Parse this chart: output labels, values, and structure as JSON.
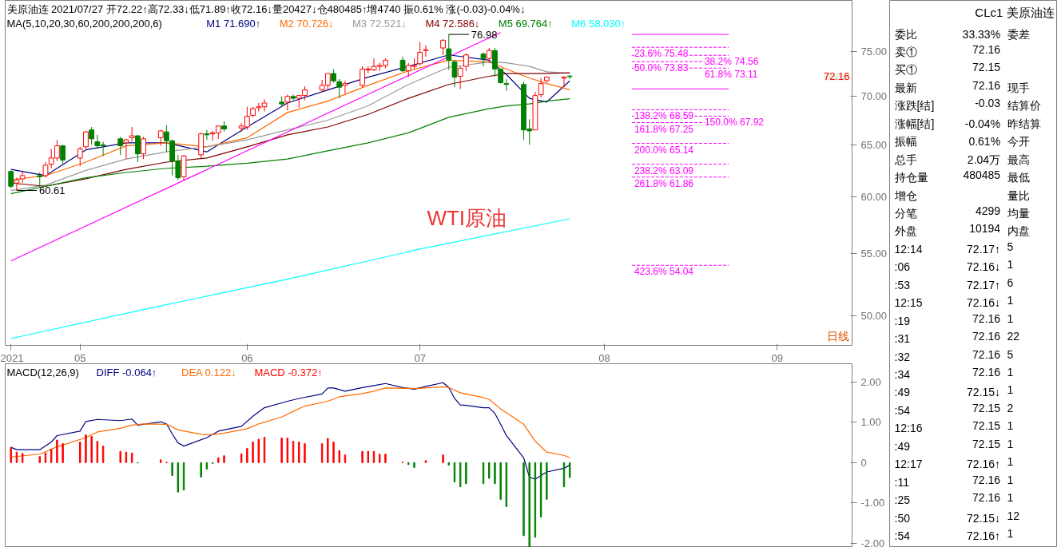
{
  "chart_data": [
    {
      "type": "candlestick",
      "title": "美原油连 2021/07/27 开72.22↑高72.33↓低71.89↑收72.16↓量20427↓仓480485↑增4740 振0.61% 涨(-0.03)-0.04%↓",
      "x": [
        "2021-04-21",
        "2021-04-22",
        "2021-04-23",
        "2021-04-26",
        "2021-04-27",
        "2021-04-28",
        "2021-04-29",
        "2021-04-30",
        "2021-05-03",
        "2021-05-04",
        "2021-05-05",
        "2021-05-06",
        "2021-05-07",
        "2021-05-10",
        "2021-05-11",
        "2021-05-12",
        "2021-05-13",
        "2021-05-14",
        "2021-05-17",
        "2021-05-18",
        "2021-05-19",
        "2021-05-20",
        "2021-05-21",
        "2021-05-24",
        "2021-05-25",
        "2021-05-26",
        "2021-05-27",
        "2021-05-28",
        "2021-05-31",
        "2021-06-01",
        "2021-06-02",
        "2021-06-03",
        "2021-06-04",
        "2021-06-07",
        "2021-06-08",
        "2021-06-09",
        "2021-06-10",
        "2021-06-11",
        "2021-06-14",
        "2021-06-15",
        "2021-06-16",
        "2021-06-17",
        "2021-06-18",
        "2021-06-21",
        "2021-06-22",
        "2021-06-23",
        "2021-06-24",
        "2021-06-25",
        "2021-06-28",
        "2021-06-29",
        "2021-06-30",
        "2021-07-01",
        "2021-07-02",
        "2021-07-05",
        "2021-07-06",
        "2021-07-07",
        "2021-07-08",
        "2021-07-09",
        "2021-07-12",
        "2021-07-13",
        "2021-07-14",
        "2021-07-15",
        "2021-07-16",
        "2021-07-19",
        "2021-07-20",
        "2021-07-21",
        "2021-07-22",
        "2021-07-23",
        "2021-07-26",
        "2021-07-27"
      ],
      "ohlc": [
        [
          62.4,
          62.5,
          60.8,
          61.0
        ],
        [
          61.3,
          61.8,
          60.61,
          61.6
        ],
        [
          61.7,
          62.4,
          61.3,
          62.0
        ],
        [
          62.0,
          62.3,
          60.9,
          61.9
        ],
        [
          62.0,
          63.3,
          61.8,
          63.0
        ],
        [
          63.1,
          64.6,
          62.7,
          63.7
        ],
        [
          63.7,
          65.5,
          63.4,
          64.9
        ],
        [
          64.9,
          65.0,
          63.1,
          63.5
        ],
        [
          63.7,
          64.8,
          62.9,
          64.6
        ],
        [
          64.8,
          66.4,
          64.6,
          66.3
        ],
        [
          66.5,
          66.8,
          65.0,
          65.6
        ],
        [
          65.3,
          66.0,
          64.6,
          64.9
        ],
        [
          65.0,
          65.3,
          63.9,
          64.9
        ],
        [
          65.6,
          65.8,
          64.0,
          64.9
        ],
        [
          65.2,
          65.6,
          63.6,
          65.5
        ],
        [
          65.7,
          66.8,
          65.3,
          65.9
        ],
        [
          65.9,
          66.0,
          63.3,
          64.1
        ],
        [
          64.1,
          65.8,
          63.6,
          65.6
        ],
        [
          65.7,
          66.5,
          64.9,
          66.4
        ],
        [
          66.3,
          67.0,
          64.3,
          65.4
        ],
        [
          65.4,
          65.5,
          62.0,
          63.4
        ],
        [
          63.4,
          64.0,
          61.6,
          61.8
        ],
        [
          61.9,
          64.0,
          61.6,
          63.9
        ],
        [
          64.0,
          66.2,
          63.7,
          66.1
        ],
        [
          66.1,
          66.5,
          65.5,
          66.0
        ],
        [
          66.1,
          66.4,
          65.4,
          66.2
        ],
        [
          66.2,
          66.9,
          65.6,
          66.9
        ],
        [
          66.9,
          67.4,
          66.3,
          66.6
        ],
        [
          66.7,
          67.2,
          66.3,
          66.9
        ],
        [
          66.8,
          68.9,
          66.5,
          67.9
        ],
        [
          68.0,
          68.9,
          67.8,
          68.7
        ],
        [
          68.8,
          69.3,
          68.4,
          68.9
        ],
        [
          68.9,
          69.7,
          68.4,
          69.3
        ],
        [
          69.4,
          70.0,
          68.9,
          69.2
        ],
        [
          69.4,
          70.2,
          68.5,
          70.0
        ],
        [
          70.0,
          70.2,
          69.6,
          69.8
        ],
        [
          69.8,
          70.1,
          68.8,
          70.1
        ],
        [
          70.1,
          71.1,
          69.6,
          70.7
        ],
        [
          70.7,
          71.8,
          70.5,
          71.2
        ],
        [
          71.2,
          72.5,
          70.7,
          72.5
        ],
        [
          72.5,
          73.0,
          71.5,
          71.7
        ],
        [
          71.6,
          71.9,
          69.8,
          71.0
        ],
        [
          71.2,
          71.7,
          70.3,
          71.4
        ],
        [
          71.2,
          73.3,
          71.0,
          73.0
        ],
        [
          72.9,
          73.3,
          72.5,
          73.0
        ],
        [
          72.9,
          74.2,
          72.8,
          73.3
        ],
        [
          73.3,
          73.7,
          72.8,
          73.4
        ],
        [
          73.4,
          74.2,
          73.1,
          74.0
        ],
        [
          74.0,
          74.4,
          72.7,
          72.8
        ],
        [
          72.8,
          73.7,
          72.1,
          73.4
        ],
        [
          73.3,
          74.2,
          73.0,
          73.4
        ],
        [
          73.6,
          76.1,
          73.4,
          74.9
        ],
        [
          75.1,
          75.7,
          74.4,
          75.2
        ],
        [
          75.4,
          76.4,
          74.6,
          76.3
        ],
        [
          75.3,
          76.98,
          72.9,
          74.0
        ],
        [
          73.8,
          74.0,
          71.0,
          72.1
        ],
        [
          72.2,
          73.3,
          70.8,
          73.1
        ],
        [
          73.3,
          74.8,
          72.8,
          74.6
        ],
        [
          74.7,
          74.9,
          73.3,
          74.2
        ],
        [
          74.2,
          75.4,
          73.7,
          75.1
        ],
        [
          75.1,
          75.4,
          72.2,
          73.0
        ],
        [
          73.0,
          73.0,
          71.4,
          71.5
        ],
        [
          71.4,
          71.9,
          70.6,
          71.3
        ],
        [
          71.3,
          71.6,
          65.5,
          66.5
        ],
        [
          66.6,
          67.6,
          65.0,
          66.4
        ],
        [
          66.5,
          70.5,
          66.5,
          70.1
        ],
        [
          70.2,
          72.0,
          69.9,
          71.4
        ],
        [
          71.7,
          72.2,
          71.5,
          72.1
        ],
        [
          72.0,
          72.2,
          71.0,
          72.1
        ],
        [
          72.22,
          72.33,
          71.89,
          72.16
        ]
      ],
      "colors": [
        "#008000",
        "#ff0000",
        "#ff0000",
        "#008000",
        "#ff0000",
        "#ff0000",
        "#ff0000",
        "#008000",
        "#ff0000",
        "#ff0000",
        "#008000",
        "#008000",
        "#008000",
        "#008000",
        "#ff0000",
        "#ff0000",
        "#008000",
        "#ff0000",
        "#ff0000",
        "#008000",
        "#008000",
        "#008000",
        "#ff0000",
        "#ff0000",
        "#008000",
        "#ff0000",
        "#ff0000",
        "#008000",
        "#ff0000",
        "#ff0000",
        "#ff0000",
        "#ff0000",
        "#ff0000",
        "#008000",
        "#ff0000",
        "#008000",
        "#ff0000",
        "#ff0000",
        "#ff0000",
        "#ff0000",
        "#008000",
        "#008000",
        "#ff0000",
        "#ff0000",
        "#ff0000",
        "#ff0000",
        "#ff0000",
        "#ff0000",
        "#008000",
        "#ff0000",
        "#ff0000",
        "#ff0000",
        "#ff0000",
        "#ff0000",
        "#008000",
        "#008000",
        "#ff0000",
        "#ff0000",
        "#008000",
        "#ff0000",
        "#008000",
        "#008000",
        "#008000",
        "#008000",
        "#008000",
        "#ff0000",
        "#ff0000",
        "#ff0000",
        "#ff0000",
        "#008000"
      ],
      "series": [
        {
          "name": "M1 71.690↑",
          "type": "line",
          "color": "#000080",
          "x": [
            "2021-04-21",
            "2021-04-27",
            "2021-05-04",
            "2021-05-11",
            "2021-05-18",
            "2021-05-25",
            "2021-06-01",
            "2021-06-08",
            "2021-06-15",
            "2021-06-22",
            "2021-06-29",
            "2021-07-06",
            "2021-07-13",
            "2021-07-16",
            "2021-07-20",
            "2021-07-23",
            "2021-07-27"
          ],
          "values": [
            62.6,
            62.0,
            64.5,
            65.2,
            65.2,
            64.3,
            66.8,
            69.3,
            70.7,
            72.1,
            73.3,
            74.6,
            74.0,
            72.4,
            69.8,
            69.4,
            71.69
          ]
        },
        {
          "name": "M2 70.726↓",
          "type": "line",
          "color": "#ff6a00",
          "x": [
            "2021-04-21",
            "2021-04-27",
            "2021-05-04",
            "2021-05-11",
            "2021-05-18",
            "2021-05-25",
            "2021-06-01",
            "2021-06-08",
            "2021-06-15",
            "2021-06-22",
            "2021-06-29",
            "2021-07-06",
            "2021-07-13",
            "2021-07-16",
            "2021-07-20",
            "2021-07-23",
            "2021-07-27"
          ],
          "values": [
            61.6,
            62.0,
            63.3,
            64.9,
            65.2,
            64.8,
            65.7,
            68.3,
            69.5,
            71.2,
            72.8,
            74.0,
            73.8,
            73.0,
            72.0,
            71.4,
            70.73
          ]
        },
        {
          "name": "M3 72.521↓",
          "type": "line",
          "color": "#999999",
          "x": [
            "2021-04-21",
            "2021-04-27",
            "2021-05-04",
            "2021-05-11",
            "2021-05-18",
            "2021-05-25",
            "2021-06-01",
            "2021-06-08",
            "2021-06-15",
            "2021-06-22",
            "2021-06-29",
            "2021-07-06",
            "2021-07-13",
            "2021-07-16",
            "2021-07-20",
            "2021-07-23",
            "2021-07-27"
          ],
          "values": [
            60.6,
            61.1,
            62.5,
            63.6,
            64.3,
            64.8,
            65.5,
            66.5,
            67.5,
            69.0,
            71.3,
            73.2,
            73.8,
            73.7,
            73.3,
            72.7,
            72.52
          ]
        },
        {
          "name": "M4 72.586↓",
          "type": "line",
          "color": "#800000",
          "x": [
            "2021-04-21",
            "2021-04-27",
            "2021-05-04",
            "2021-05-11",
            "2021-05-18",
            "2021-05-25",
            "2021-06-01",
            "2021-06-08",
            "2021-06-15",
            "2021-06-22",
            "2021-06-29",
            "2021-07-06",
            "2021-07-13",
            "2021-07-16",
            "2021-07-20",
            "2021-07-23",
            "2021-07-27"
          ],
          "values": [
            61.3,
            61.0,
            61.7,
            62.6,
            63.3,
            63.7,
            64.8,
            66.0,
            66.8,
            68.1,
            69.8,
            71.3,
            72.2,
            72.5,
            72.5,
            72.5,
            72.59
          ]
        },
        {
          "name": "M5 69.764↑",
          "type": "line",
          "color": "#008000",
          "x": [
            "2021-04-21",
            "2021-04-27",
            "2021-05-04",
            "2021-05-11",
            "2021-05-18",
            "2021-05-25",
            "2021-06-01",
            "2021-06-08",
            "2021-06-15",
            "2021-06-22",
            "2021-06-29",
            "2021-07-06",
            "2021-07-13",
            "2021-07-16",
            "2021-07-20",
            "2021-07-23",
            "2021-07-27"
          ],
          "values": [
            60.3,
            61.0,
            61.8,
            62.3,
            62.7,
            62.9,
            63.2,
            63.6,
            64.4,
            65.2,
            66.2,
            67.8,
            68.7,
            69.0,
            69.2,
            69.5,
            69.76
          ]
        },
        {
          "name": "M6 58.030↑",
          "type": "line",
          "color": "#00ffff",
          "x": [
            "2021-04-21",
            "2021-05-14",
            "2021-06-08",
            "2021-07-01",
            "2021-07-27"
          ],
          "values": [
            48.3,
            50.5,
            52.9,
            55.4,
            58.03
          ]
        },
        {
          "type": "line",
          "color": "#ff00ff",
          "x": [
            "2021-04-21",
            "2021-07-15"
          ],
          "values": [
            54.4,
            77.2
          ]
        }
      ],
      "legend": "top",
      "legend_title": "MA(5,10,20,30,60,200,200,200,6)",
      "xlim": [
        "2021-04-20",
        "2021-09-14"
      ],
      "ylim": [
        47.8,
        81.1
      ],
      "log": true,
      "xticks": [
        {
          "value": "2021-04-21",
          "label": "2021"
        },
        {
          "value": "2021-05-03",
          "label": "05"
        },
        {
          "value": "2021-06-01",
          "label": "06"
        },
        {
          "value": "2021-07-01",
          "label": "07"
        },
        {
          "value": "2021-08-02",
          "label": "08"
        },
        {
          "value": "2021-09-01",
          "label": "09"
        }
      ],
      "yticks": [
        {
          "value": 50,
          "label": "50.00"
        },
        {
          "value": 55,
          "label": "55.00"
        },
        {
          "value": 60,
          "label": "60.00"
        },
        {
          "value": 65,
          "label": "65.00"
        },
        {
          "value": 70,
          "label": "70.00"
        },
        {
          "value": 75,
          "label": "75.00"
        }
      ],
      "ref_lines": [
        {
          "axis": "y",
          "value": 76.98,
          "label": null,
          "color": "#ff00ff",
          "line_style": "solid"
        },
        {
          "axis": "y",
          "value": 75.48,
          "label": "23.6% 75.48",
          "color": "#ff00ff",
          "line_style": "dashed"
        },
        {
          "axis": "y",
          "value": 74.56,
          "label": "38.2% 74.56",
          "color": "#ff00ff",
          "line_style": "dashed"
        },
        {
          "axis": "y",
          "value": 73.83,
          "label": "50.0% 73.83",
          "color": "#ff00ff",
          "line_style": "dashed"
        },
        {
          "axis": "y",
          "value": 73.11,
          "label": "61.8% 73.11",
          "color": "#ff00ff",
          "line_style": "dashed"
        },
        {
          "axis": "y",
          "value": 70.82,
          "label": null,
          "color": "#ff00ff",
          "line_style": "solid"
        },
        {
          "axis": "y",
          "value": 68.59,
          "label": "138.2% 68.59",
          "color": "#ff00ff",
          "line_style": "dashed"
        },
        {
          "axis": "y",
          "value": 67.92,
          "label": "150.0% 67.92",
          "color": "#ff00ff",
          "line_style": "dashed"
        },
        {
          "axis": "y",
          "value": 67.25,
          "label": "161.8% 67.25",
          "color": "#ff00ff",
          "line_style": "dashed"
        },
        {
          "axis": "y",
          "value": 65.14,
          "label": "200.0% 65.14",
          "color": "#ff00ff",
          "line_style": "dashed"
        },
        {
          "axis": "y",
          "value": 63.09,
          "label": "238.2% 63.09",
          "color": "#ff00ff",
          "line_style": "dashed"
        },
        {
          "axis": "y",
          "value": 61.86,
          "label": "261.8% 61.86",
          "color": "#ff00ff",
          "line_style": "dashed"
        },
        {
          "axis": "y",
          "value": 54.04,
          "label": "423.6% 54.04",
          "color": "#ff00ff",
          "line_style": "dashed"
        }
      ],
      "annotations": [
        "WTI原油",
        "日线",
        {
          "text": "76.98",
          "x": "2021-07-06",
          "y": 76.98
        },
        {
          "text": "60.61",
          "x": "2021-04-22",
          "y": 60.61
        },
        "72.16"
      ]
    },
    {
      "type": "bar",
      "title": "MACD(12,26,9)",
      "x": [
        "2021-04-21",
        "2021-04-22",
        "2021-04-23",
        "2021-04-26",
        "2021-04-27",
        "2021-04-28",
        "2021-04-29",
        "2021-04-30",
        "2021-05-03",
        "2021-05-04",
        "2021-05-05",
        "2021-05-06",
        "2021-05-07",
        "2021-05-10",
        "2021-05-11",
        "2021-05-12",
        "2021-05-13",
        "2021-05-14",
        "2021-05-17",
        "2021-05-18",
        "2021-05-19",
        "2021-05-20",
        "2021-05-21",
        "2021-05-24",
        "2021-05-25",
        "2021-05-26",
        "2021-05-27",
        "2021-05-28",
        "2021-05-31",
        "2021-06-01",
        "2021-06-02",
        "2021-06-03",
        "2021-06-04",
        "2021-06-07",
        "2021-06-08",
        "2021-06-09",
        "2021-06-10",
        "2021-06-11",
        "2021-06-14",
        "2021-06-15",
        "2021-06-16",
        "2021-06-17",
        "2021-06-18",
        "2021-06-21",
        "2021-06-22",
        "2021-06-23",
        "2021-06-24",
        "2021-06-25",
        "2021-06-28",
        "2021-06-29",
        "2021-06-30",
        "2021-07-01",
        "2021-07-02",
        "2021-07-05",
        "2021-07-06",
        "2021-07-07",
        "2021-07-08",
        "2021-07-09",
        "2021-07-12",
        "2021-07-13",
        "2021-07-14",
        "2021-07-15",
        "2021-07-16",
        "2021-07-19",
        "2021-07-20",
        "2021-07-21",
        "2021-07-22",
        "2021-07-23",
        "2021-07-26",
        "2021-07-27"
      ],
      "series": [
        {
          "name": "DIFF -0.064↑",
          "type": "line",
          "color": "#000080",
          "x": [
            "2021-04-21",
            "2021-04-22",
            "2021-04-26",
            "2021-04-28",
            "2021-04-29",
            "2021-05-03",
            "2021-05-04",
            "2021-05-06",
            "2021-05-10",
            "2021-05-12",
            "2021-05-13",
            "2021-05-17",
            "2021-05-18",
            "2021-05-19",
            "2021-05-20",
            "2021-05-21",
            "2021-05-25",
            "2021-05-27",
            "2021-05-31",
            "2021-06-02",
            "2021-06-04",
            "2021-06-08",
            "2021-06-10",
            "2021-06-14",
            "2021-06-15",
            "2021-06-16",
            "2021-06-18",
            "2021-06-21",
            "2021-06-23",
            "2021-06-25",
            "2021-06-28",
            "2021-06-30",
            "2021-07-02",
            "2021-07-05",
            "2021-07-06",
            "2021-07-07",
            "2021-07-08",
            "2021-07-09",
            "2021-07-12",
            "2021-07-13",
            "2021-07-14",
            "2021-07-15",
            "2021-07-16",
            "2021-07-19",
            "2021-07-20",
            "2021-07-21",
            "2021-07-22",
            "2021-07-23",
            "2021-07-26",
            "2021-07-27"
          ],
          "values": [
            0.38,
            0.32,
            0.32,
            0.51,
            0.67,
            0.78,
            1.02,
            1.07,
            1.04,
            1.08,
            0.93,
            1.01,
            0.96,
            0.71,
            0.49,
            0.41,
            0.62,
            0.78,
            0.9,
            1.15,
            1.36,
            1.52,
            1.59,
            1.7,
            1.85,
            1.85,
            1.77,
            1.86,
            1.91,
            1.96,
            1.86,
            1.82,
            1.89,
            1.98,
            1.86,
            1.59,
            1.43,
            1.42,
            1.36,
            1.36,
            1.22,
            0.95,
            0.67,
            0.12,
            -0.36,
            -0.41,
            -0.32,
            -0.23,
            -0.14,
            -0.06
          ]
        },
        {
          "name": "DEA 0.122↓",
          "type": "line",
          "color": "#ff6a00",
          "x": [
            "2021-04-21",
            "2021-04-26",
            "2021-04-29",
            "2021-05-04",
            "2021-05-06",
            "2021-05-10",
            "2021-05-12",
            "2021-05-14",
            "2021-05-18",
            "2021-05-20",
            "2021-05-24",
            "2021-05-26",
            "2021-05-28",
            "2021-06-01",
            "2021-06-03",
            "2021-06-07",
            "2021-06-09",
            "2021-06-11",
            "2021-06-15",
            "2021-06-17",
            "2021-06-21",
            "2021-06-23",
            "2021-06-25",
            "2021-06-29",
            "2021-07-01",
            "2021-07-05",
            "2021-07-06",
            "2021-07-08",
            "2021-07-12",
            "2021-07-13",
            "2021-07-15",
            "2021-07-19",
            "2021-07-21",
            "2021-07-23",
            "2021-07-26",
            "2021-07-27"
          ],
          "values": [
            0.14,
            0.21,
            0.39,
            0.62,
            0.76,
            0.85,
            0.93,
            0.96,
            0.95,
            0.81,
            0.7,
            0.69,
            0.73,
            0.84,
            0.96,
            1.13,
            1.27,
            1.4,
            1.52,
            1.63,
            1.71,
            1.77,
            1.85,
            1.84,
            1.84,
            1.88,
            1.86,
            1.73,
            1.61,
            1.57,
            1.33,
            0.95,
            0.53,
            0.26,
            0.18,
            0.12
          ]
        },
        {
          "name": "MACD -0.372↑",
          "type": "bar",
          "values": [
            0.38,
            0.26,
            0.23,
            0.15,
            0.24,
            0.33,
            0.56,
            0.47,
            0.51,
            0.69,
            0.65,
            0.53,
            0.41,
            0.28,
            0.26,
            0.24,
            -0.01,
            null,
            0.07,
            0.01,
            -0.32,
            -0.73,
            -0.68,
            -0.36,
            -0.16,
            -0.02,
            0.12,
            0.17,
            0.22,
            0.35,
            0.51,
            0.58,
            0.63,
            0.61,
            0.61,
            0.53,
            0.51,
            0.47,
            0.47,
            0.6,
            0.51,
            0.3,
            0.19,
            0.28,
            0.28,
            0.28,
            0.21,
            0.21,
            0.01,
            -0.05,
            -0.12,
            null,
            0.05,
            0.19,
            -0.06,
            -0.48,
            -0.6,
            -0.52,
            -0.52,
            -0.39,
            -0.52,
            -0.91,
            -1.09,
            -1.81,
            -2.08,
            -1.85,
            -1.35,
            -0.91,
            -0.6,
            -0.37
          ],
          "colors": [
            "#ff0000",
            "#ff0000",
            "#ff0000",
            "#ff0000",
            "#ff0000",
            "#ff0000",
            "#ff0000",
            "#ff0000",
            "#ff0000",
            "#ff0000",
            "#ff0000",
            "#ff0000",
            "#ff0000",
            "#ff0000",
            "#ff0000",
            "#ff0000",
            "#008000",
            "#008000",
            "#ff0000",
            "#ff0000",
            "#008000",
            "#008000",
            "#008000",
            "#008000",
            "#008000",
            "#008000",
            "#ff0000",
            "#ff0000",
            "#ff0000",
            "#ff0000",
            "#ff0000",
            "#ff0000",
            "#ff0000",
            "#ff0000",
            "#ff0000",
            "#ff0000",
            "#ff0000",
            "#ff0000",
            "#ff0000",
            "#ff0000",
            "#ff0000",
            "#ff0000",
            "#ff0000",
            "#ff0000",
            "#ff0000",
            "#ff0000",
            "#ff0000",
            "#ff0000",
            "#ff0000",
            "#008000",
            "#008000",
            "#008000",
            "#ff0000",
            "#ff0000",
            "#008000",
            "#008000",
            "#008000",
            "#008000",
            "#008000",
            "#008000",
            "#008000",
            "#008000",
            "#008000",
            "#008000",
            "#008000",
            "#008000",
            "#008000",
            "#008000",
            "#008000",
            "#008000"
          ]
        }
      ],
      "legend": "top left",
      "xlim": [
        "2021-04-20",
        "2021-09-14"
      ],
      "ylim": [
        -2.1,
        2.45
      ],
      "tick_labels": "y",
      "yticks": [
        {
          "value": 2,
          "label": "2.00"
        },
        {
          "value": 1,
          "label": "1.00"
        },
        {
          "value": 0,
          "label": "0"
        },
        {
          "value": -1,
          "label": "-1.00"
        },
        {
          "value": -2,
          "label": "-2.00"
        }
      ]
    },
    {
      "type": "other",
      "title": "CLc1 美原油连",
      "annotations": [
        "委比\t33.33%\t委差",
        "卖①\t72.16",
        "买①\t72.15",
        "最新\t72.16\t现手",
        "涨跌[结]\t-0.03\t结算价",
        "涨幅[结]\t-0.04%\t昨结算",
        "振幅\t0.61%\t今开",
        "总手\t2.04万\t最高",
        "持仓量\t480485\t最低",
        "增仓\t\t量比",
        "分笔\t4299\t均量",
        "外盘\t10194\t内盘",
        "12:14\t72.17↑\t5",
        ":06\t72.16↓\t1",
        ":53\t72.17↑\t6",
        "12:15\t72.16↓\t1",
        ":19\t72.16\t1",
        ":31\t72.16\t22",
        ":32\t72.16\t5",
        ":34\t72.16\t1",
        ":49\t72.15↓\t1",
        ":54\t72.15\t2",
        "12:16\t72.15\t1",
        ":49\t72.15\t1",
        "12:17\t72.16↑\t1",
        ":11\t72.16\t1",
        ":25\t72.16\t1",
        ":50\t72.15↓\t12",
        ":54\t72.16↑\t1"
      ]
    }
  ]
}
